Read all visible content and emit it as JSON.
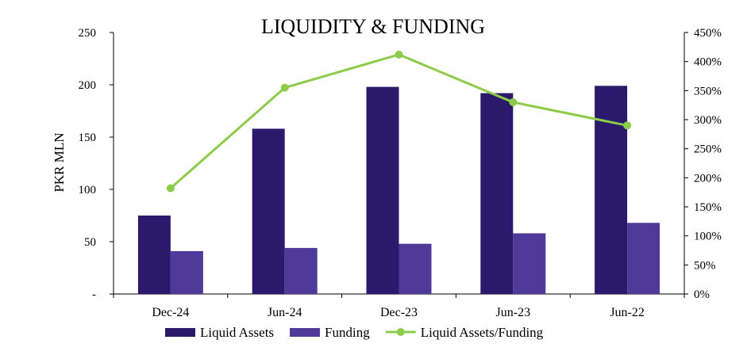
{
  "chart_data": {
    "type": "bar",
    "title": "LIQUIDITY & FUNDING",
    "xlabel": "",
    "ylabel": "PKR MLN",
    "categories": [
      "Dec-24",
      "Jun-24",
      "Dec-23",
      "Jun-23",
      "Jun-22"
    ],
    "ylim": [
      0,
      250
    ],
    "yticks": [
      0,
      50,
      100,
      150,
      200,
      250
    ],
    "ytick_labels": [
      "-",
      "50",
      "100",
      "150",
      "200",
      "250"
    ],
    "y2lim": [
      0,
      450
    ],
    "y2ticks": [
      0,
      50,
      100,
      150,
      200,
      250,
      300,
      350,
      400,
      450
    ],
    "y2tick_labels": [
      "0%",
      "50%",
      "100%",
      "150%",
      "200%",
      "250%",
      "300%",
      "350%",
      "400%",
      "450%"
    ],
    "series": [
      {
        "name": "Liquid Assets",
        "type": "bar",
        "axis": "left",
        "color": "#2b1a6b",
        "values": [
          75,
          158,
          198,
          192,
          199
        ]
      },
      {
        "name": "Funding",
        "type": "bar",
        "axis": "left",
        "color": "#4f3a9a",
        "values": [
          41,
          44,
          48,
          58,
          68
        ]
      },
      {
        "name": "Liquid Assets/Funding",
        "type": "line",
        "axis": "right",
        "color": "#8dcb4a",
        "values": [
          182,
          355,
          412,
          330,
          290
        ]
      }
    ],
    "grid": false,
    "legend_position": "bottom"
  }
}
